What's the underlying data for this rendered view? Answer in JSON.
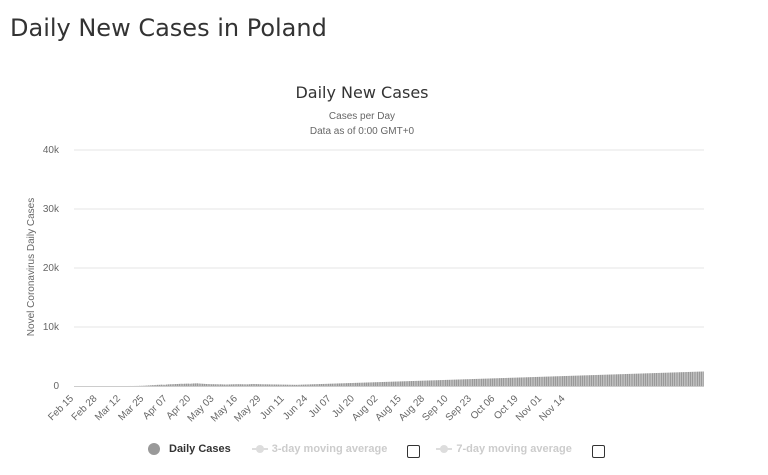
{
  "page": {
    "title": "Daily New Cases in Poland"
  },
  "legend": {
    "daily_label": "Daily Cases",
    "avg3_label": "3-day moving average",
    "avg7_label": "7-day moving average"
  },
  "colors": {
    "bars": "#999999",
    "grid": "#e6e6e6",
    "axis": "#cccccc",
    "text": "#333333",
    "tick_text": "#666666"
  },
  "chart_data": {
    "type": "bar",
    "title": "Daily New Cases",
    "subtitle": [
      "Cases per Day",
      "Data as of 0:00 GMT+0"
    ],
    "ylabel": "Novel Coronavirus Daily Cases",
    "ylim": [
      0,
      40000
    ],
    "yticks": [
      0,
      10000,
      20000,
      30000,
      40000
    ],
    "ytick_labels": [
      "0",
      "10k",
      "20k",
      "30k",
      "40k"
    ],
    "xtick_labels": [
      "Feb 15",
      "Feb 28",
      "Mar 12",
      "Mar 25",
      "Apr 07",
      "Apr 20",
      "May 03",
      "May 16",
      "May 29",
      "Jun 11",
      "Jun 24",
      "Jul 07",
      "Jul 20",
      "Aug 02",
      "Aug 15",
      "Aug 28",
      "Sep 10",
      "Sep 23",
      "Oct 06",
      "Oct 19",
      "Nov 01",
      "Nov 14"
    ],
    "x_start": "Feb 15",
    "series": [
      {
        "values": [
          0,
          0,
          0,
          0,
          0,
          0,
          0,
          0,
          0,
          0,
          0,
          0,
          0,
          0,
          0,
          0,
          0,
          0,
          0,
          0,
          0,
          0,
          0,
          0,
          0,
          0,
          0,
          0,
          0,
          0,
          2,
          5,
          3,
          8,
          15,
          17,
          30,
          36,
          45,
          65,
          85,
          100,
          115,
          140,
          160,
          180,
          200,
          205,
          230,
          215,
          210,
          250,
          280,
          295,
          305,
          320,
          330,
          340,
          360,
          380,
          370,
          385,
          395,
          400,
          380,
          410,
          430,
          440,
          450,
          420,
          400,
          380,
          360,
          340,
          330,
          320,
          300,
          310,
          290,
          300,
          280,
          290,
          270,
          260,
          250,
          265,
          270,
          280,
          290,
          300,
          310,
          305,
          300,
          295,
          290,
          285,
          280,
          300,
          320,
          340,
          330,
          320,
          310,
          300,
          295,
          290,
          285,
          280,
          275,
          270,
          265,
          260,
          255,
          250,
          245,
          240,
          235,
          230,
          225,
          220,
          215,
          210,
          205,
          200,
          210,
          220,
          230,
          240,
          250,
          260,
          270,
          280,
          290,
          300,
          310,
          320,
          330,
          340,
          350,
          360,
          370,
          380,
          390,
          400,
          410,
          420,
          430,
          440,
          450,
          460,
          470,
          480,
          490,
          500,
          510,
          520,
          530,
          540,
          550,
          560,
          570,
          580,
          590,
          600,
          610,
          620,
          630,
          640,
          650,
          660,
          670,
          680,
          690,
          700,
          710,
          720,
          730,
          740,
          750,
          760,
          770,
          780,
          790,
          800,
          810,
          820,
          830,
          840,
          850,
          860,
          870,
          880,
          890,
          900,
          910,
          920,
          930,
          940,
          950,
          960,
          970,
          980,
          990,
          1000,
          1010,
          1020,
          1030,
          1040,
          1050,
          1060,
          1070,
          1080,
          1090,
          1100,
          1110,
          1120,
          1130,
          1140,
          1150,
          1160,
          1170,
          1180,
          1190,
          1200,
          1210,
          1220,
          1230,
          1240,
          1250,
          1260,
          1270,
          1280,
          1290,
          1300,
          1310,
          1320,
          1330,
          1340,
          1350,
          1360,
          1370,
          1380,
          1390,
          1400,
          1410,
          1420,
          1430,
          1440,
          1450,
          1460,
          1470,
          1480,
          1490,
          1500,
          1510,
          1520,
          1530,
          1540,
          1550,
          1560,
          1570,
          1580,
          1590,
          1600,
          1610,
          1620,
          1630,
          1640,
          1650,
          1660,
          1670,
          1680,
          1690,
          1700,
          1710,
          1720,
          1730,
          1740,
          1750,
          1760,
          1770,
          1780,
          1790,
          1800,
          1810,
          1820,
          1830,
          1840,
          1850,
          1860,
          1870,
          1880,
          1890,
          1900,
          1910,
          1920,
          1930,
          1940,
          1950,
          1960,
          1970,
          1980,
          1990,
          2000,
          2010,
          2020,
          2030,
          2040,
          2050,
          2060,
          2070,
          2080,
          2090,
          2100,
          2110,
          2120,
          2130,
          2140,
          2150,
          2160,
          2170,
          2180,
          2190,
          2200,
          2210,
          2220,
          2230,
          2240,
          2250,
          2260,
          2270,
          2280,
          2290,
          2300,
          2310,
          2320,
          2330,
          2340,
          2350,
          2360,
          2370,
          2380,
          2390,
          2400,
          2410,
          2420,
          2430,
          2440,
          2450,
          2460
        ]
      }
    ]
  }
}
